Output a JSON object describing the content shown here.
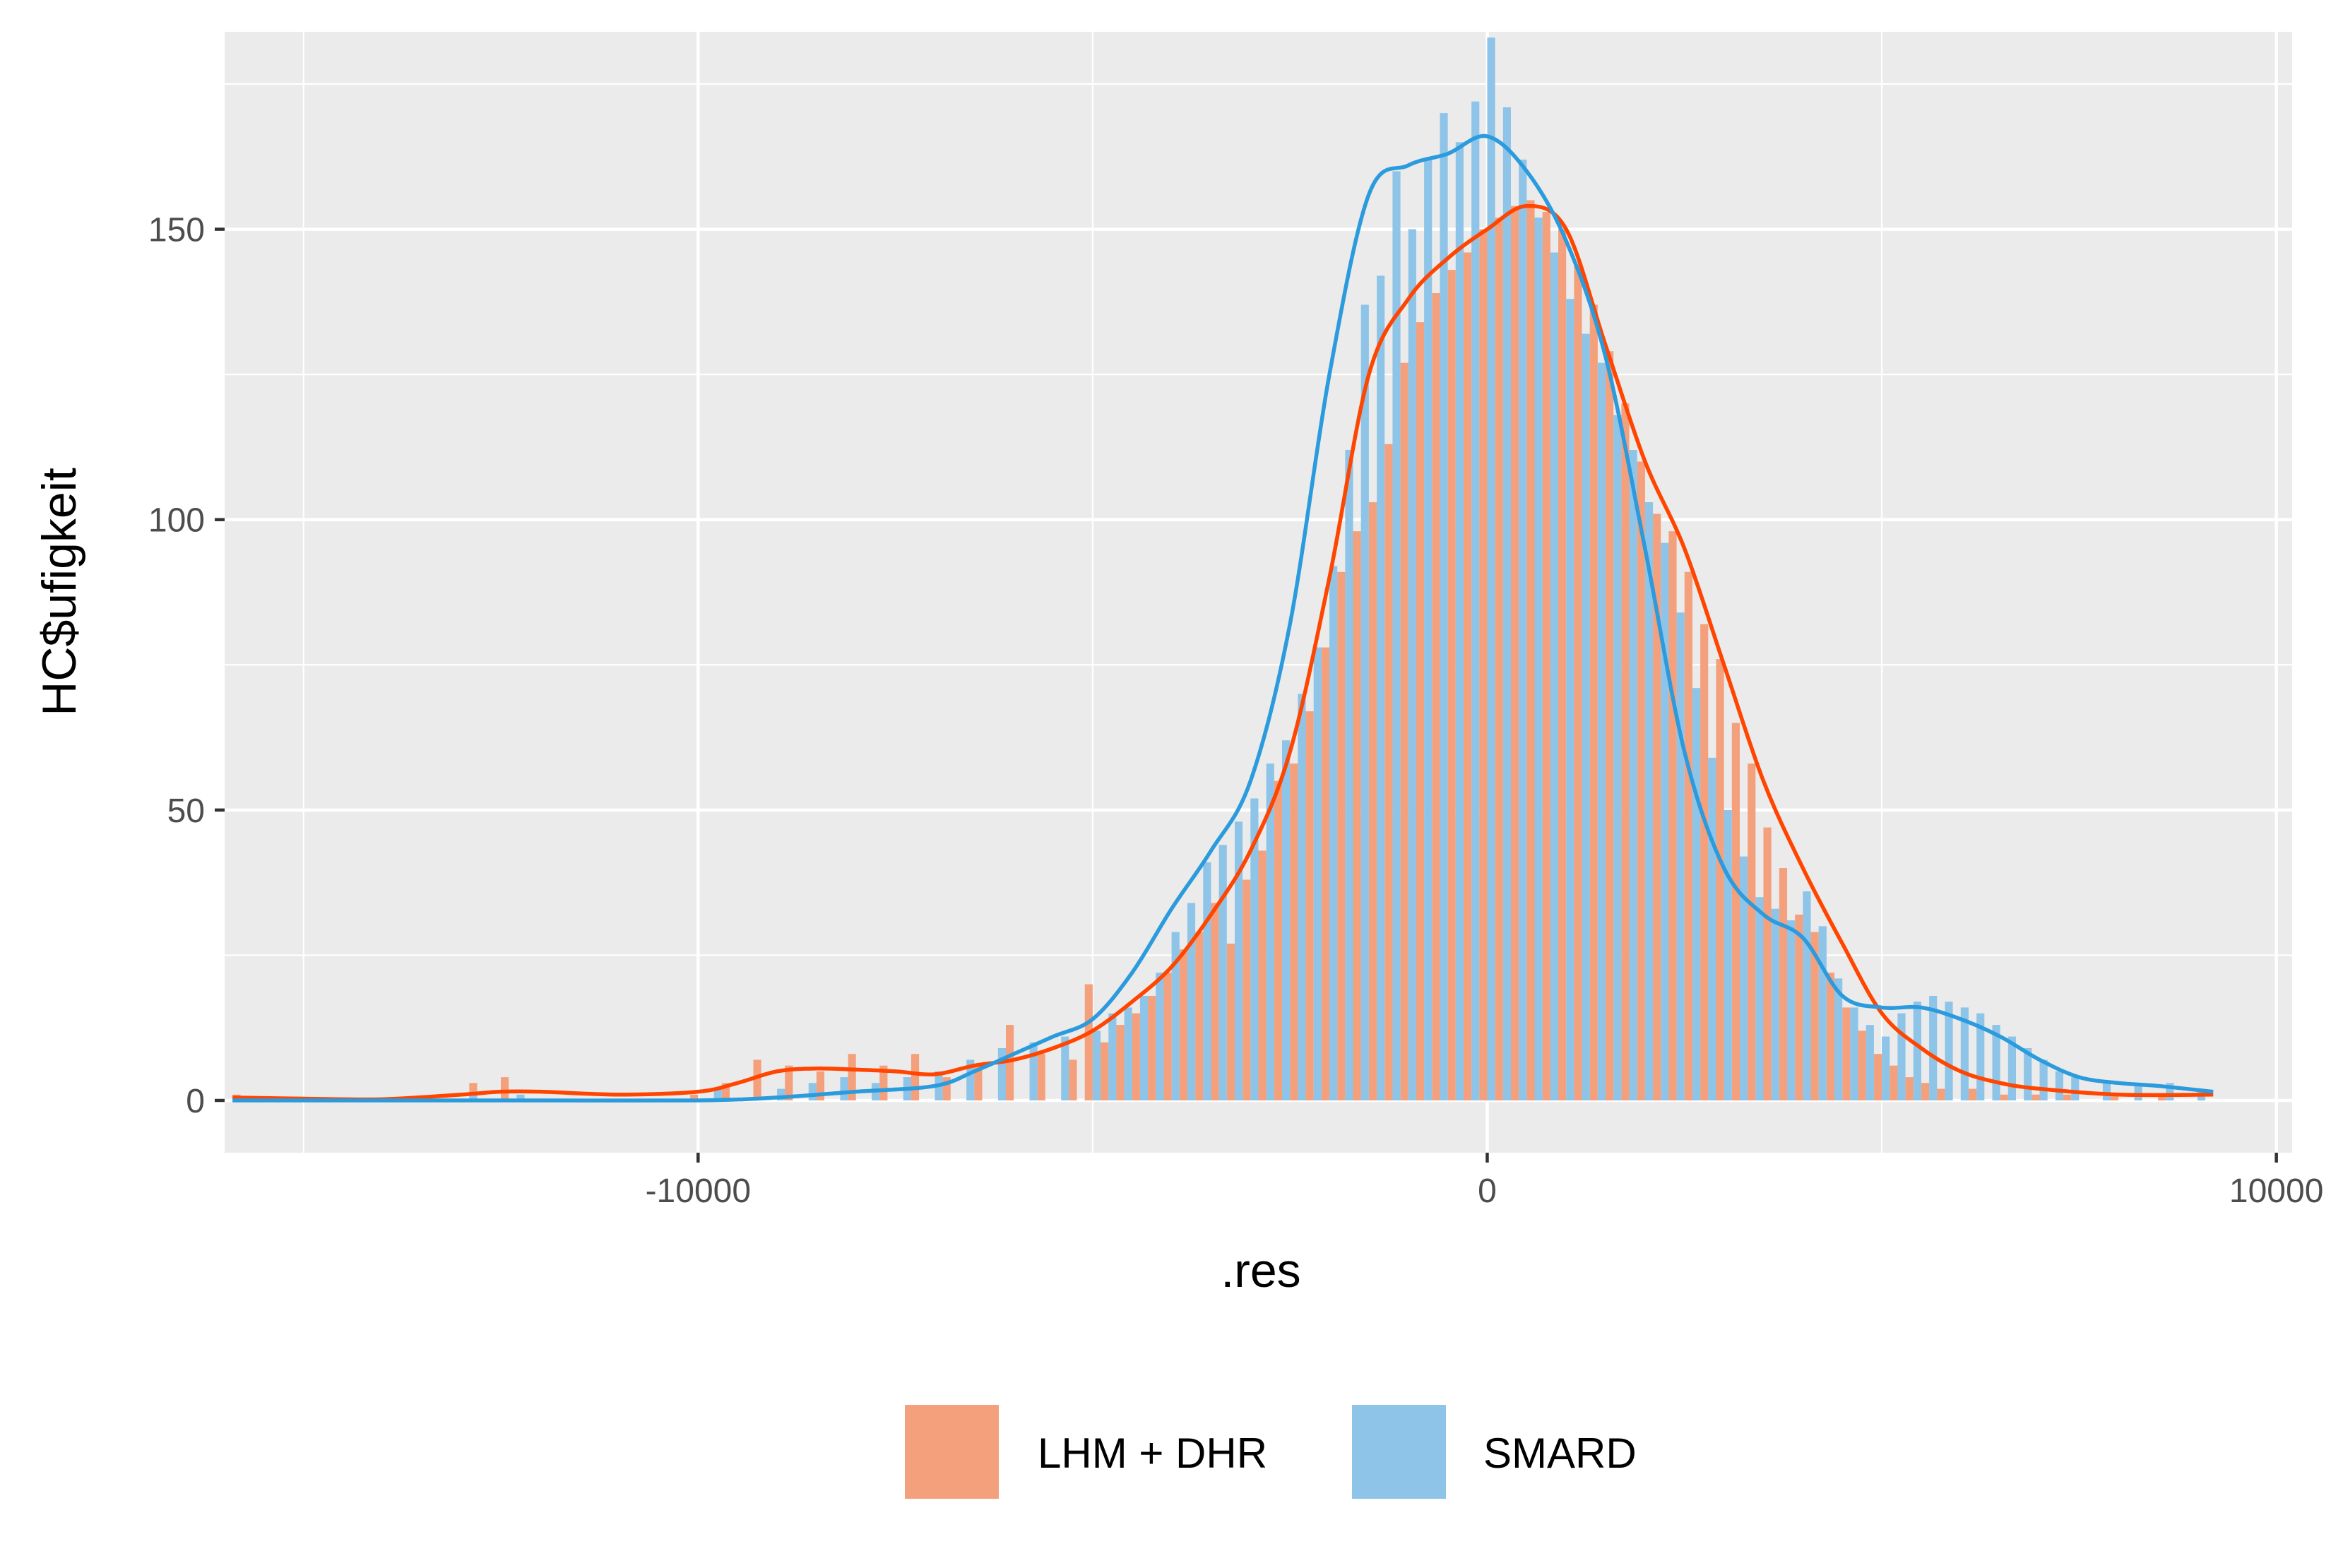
{
  "chart_data": {
    "type": "bar",
    "title": "",
    "xlabel": ".res",
    "ylabel": "HC$ufigkeit",
    "xlim": [
      -16000,
      10200
    ],
    "ylim": [
      -9,
      184
    ],
    "x_ticks": [
      -10000,
      0,
      10000
    ],
    "x_tick_labels": [
      "-10000",
      "0",
      "10000"
    ],
    "y_ticks": [
      0,
      50,
      100,
      150
    ],
    "y_tick_labels": [
      "0",
      "50",
      "100",
      "150"
    ],
    "grid": true,
    "legend_position": "bottom",
    "bin_width": 200,
    "series": [
      {
        "name": "LHM + DHR",
        "color": "#F4A07C",
        "line_color": "#FF4500",
        "bins": [
          [
            -15800,
            1
          ],
          [
            -12800,
            3
          ],
          [
            -12400,
            4
          ],
          [
            -10000,
            1
          ],
          [
            -9600,
            3
          ],
          [
            -9200,
            7
          ],
          [
            -8800,
            6
          ],
          [
            -8400,
            5
          ],
          [
            -8000,
            8
          ],
          [
            -7600,
            6
          ],
          [
            -7200,
            8
          ],
          [
            -6800,
            4
          ],
          [
            -6400,
            6
          ],
          [
            -6000,
            13
          ],
          [
            -5600,
            8
          ],
          [
            -5200,
            7
          ],
          [
            -5000,
            20
          ],
          [
            -4800,
            10
          ],
          [
            -4600,
            13
          ],
          [
            -4400,
            15
          ],
          [
            -4200,
            18
          ],
          [
            -4000,
            22
          ],
          [
            -3800,
            26
          ],
          [
            -3600,
            29
          ],
          [
            -3400,
            34
          ],
          [
            -3200,
            27
          ],
          [
            -3000,
            38
          ],
          [
            -2800,
            43
          ],
          [
            -2600,
            55
          ],
          [
            -2400,
            58
          ],
          [
            -2200,
            67
          ],
          [
            -2000,
            78
          ],
          [
            -1800,
            91
          ],
          [
            -1600,
            98
          ],
          [
            -1400,
            103
          ],
          [
            -1200,
            113
          ],
          [
            -1000,
            127
          ],
          [
            -800,
            134
          ],
          [
            -600,
            139
          ],
          [
            -400,
            143
          ],
          [
            -200,
            146
          ],
          [
            0,
            150
          ],
          [
            200,
            152
          ],
          [
            400,
            154
          ],
          [
            600,
            155
          ],
          [
            800,
            153
          ],
          [
            1000,
            150
          ],
          [
            1200,
            144
          ],
          [
            1400,
            137
          ],
          [
            1600,
            129
          ],
          [
            1800,
            120
          ],
          [
            2000,
            110
          ],
          [
            2200,
            101
          ],
          [
            2400,
            98
          ],
          [
            2600,
            91
          ],
          [
            2800,
            82
          ],
          [
            3000,
            76
          ],
          [
            3200,
            65
          ],
          [
            3400,
            58
          ],
          [
            3600,
            47
          ],
          [
            3800,
            40
          ],
          [
            4000,
            32
          ],
          [
            4200,
            29
          ],
          [
            4400,
            22
          ],
          [
            4600,
            16
          ],
          [
            4800,
            12
          ],
          [
            5000,
            8
          ],
          [
            5200,
            6
          ],
          [
            5400,
            4
          ],
          [
            5600,
            3
          ],
          [
            5800,
            2
          ],
          [
            6200,
            2
          ],
          [
            6600,
            1
          ],
          [
            7000,
            1
          ],
          [
            7400,
            1
          ],
          [
            8000,
            1
          ],
          [
            8600,
            1
          ]
        ],
        "density": [
          [
            -15900,
            0.5
          ],
          [
            -15000,
            0.3
          ],
          [
            -14000,
            0.2
          ],
          [
            -13000,
            1.0
          ],
          [
            -12500,
            1.5
          ],
          [
            -12000,
            1.5
          ],
          [
            -11000,
            1.0
          ],
          [
            -10000,
            1.5
          ],
          [
            -9500,
            3
          ],
          [
            -9000,
            5
          ],
          [
            -8500,
            5.5
          ],
          [
            -8000,
            5.3
          ],
          [
            -7500,
            5
          ],
          [
            -7000,
            4.5
          ],
          [
            -6500,
            6
          ],
          [
            -6000,
            7
          ],
          [
            -5500,
            9
          ],
          [
            -5000,
            12
          ],
          [
            -4500,
            17
          ],
          [
            -4000,
            23
          ],
          [
            -3500,
            32
          ],
          [
            -3000,
            43
          ],
          [
            -2500,
            60
          ],
          [
            -2000,
            90
          ],
          [
            -1500,
            125
          ],
          [
            -1000,
            138
          ],
          [
            -500,
            145
          ],
          [
            0,
            150
          ],
          [
            500,
            154
          ],
          [
            1000,
            150
          ],
          [
            1500,
            130
          ],
          [
            2000,
            110
          ],
          [
            2500,
            95
          ],
          [
            3000,
            75
          ],
          [
            3500,
            55
          ],
          [
            4000,
            40
          ],
          [
            4500,
            27
          ],
          [
            5000,
            15
          ],
          [
            5500,
            9
          ],
          [
            6000,
            5
          ],
          [
            6500,
            3
          ],
          [
            7000,
            2
          ],
          [
            8000,
            1
          ],
          [
            9200,
            1
          ]
        ]
      },
      {
        "name": "SMARD",
        "color": "#8EC4E8",
        "line_color": "#2B9BDD",
        "bins": [
          [
            -15400,
            0
          ],
          [
            -12900,
            1
          ],
          [
            -12300,
            1
          ],
          [
            -9800,
            2
          ],
          [
            -9000,
            2
          ],
          [
            -8600,
            3
          ],
          [
            -8200,
            4
          ],
          [
            -7800,
            3
          ],
          [
            -7400,
            4
          ],
          [
            -7000,
            5
          ],
          [
            -6600,
            7
          ],
          [
            -6200,
            9
          ],
          [
            -5800,
            10
          ],
          [
            -5400,
            11
          ],
          [
            -5000,
            12
          ],
          [
            -4800,
            15
          ],
          [
            -4600,
            16
          ],
          [
            -4400,
            18
          ],
          [
            -4200,
            22
          ],
          [
            -4000,
            29
          ],
          [
            -3800,
            34
          ],
          [
            -3600,
            41
          ],
          [
            -3400,
            44
          ],
          [
            -3200,
            48
          ],
          [
            -3000,
            52
          ],
          [
            -2800,
            58
          ],
          [
            -2600,
            62
          ],
          [
            -2400,
            70
          ],
          [
            -2200,
            78
          ],
          [
            -2000,
            92
          ],
          [
            -1800,
            112
          ],
          [
            -1600,
            137
          ],
          [
            -1400,
            142
          ],
          [
            -1200,
            160
          ],
          [
            -1000,
            150
          ],
          [
            -800,
            162
          ],
          [
            -600,
            170
          ],
          [
            -400,
            165
          ],
          [
            -200,
            172
          ],
          [
            0,
            183
          ],
          [
            200,
            171
          ],
          [
            400,
            162
          ],
          [
            600,
            152
          ],
          [
            800,
            146
          ],
          [
            1000,
            138
          ],
          [
            1200,
            132
          ],
          [
            1400,
            127
          ],
          [
            1600,
            118
          ],
          [
            1800,
            112
          ],
          [
            2000,
            103
          ],
          [
            2200,
            96
          ],
          [
            2400,
            84
          ],
          [
            2600,
            71
          ],
          [
            2800,
            59
          ],
          [
            3000,
            50
          ],
          [
            3200,
            42
          ],
          [
            3400,
            35
          ],
          [
            3600,
            33
          ],
          [
            3800,
            31
          ],
          [
            4000,
            36
          ],
          [
            4200,
            30
          ],
          [
            4400,
            21
          ],
          [
            4600,
            16
          ],
          [
            4800,
            13
          ],
          [
            5000,
            11
          ],
          [
            5200,
            15
          ],
          [
            5400,
            17
          ],
          [
            5600,
            18
          ],
          [
            5800,
            17
          ],
          [
            6000,
            16
          ],
          [
            6200,
            15
          ],
          [
            6400,
            13
          ],
          [
            6600,
            11
          ],
          [
            6800,
            9
          ],
          [
            7000,
            7
          ],
          [
            7200,
            5
          ],
          [
            7400,
            4
          ],
          [
            7800,
            3
          ],
          [
            8200,
            3
          ],
          [
            8600,
            3
          ],
          [
            9000,
            2
          ]
        ],
        "density": [
          [
            -15900,
            0
          ],
          [
            -14000,
            0
          ],
          [
            -12000,
            0
          ],
          [
            -10000,
            0
          ],
          [
            -9000,
            0.5
          ],
          [
            -8000,
            1.5
          ],
          [
            -7000,
            2.5
          ],
          [
            -6500,
            5
          ],
          [
            -6000,
            8
          ],
          [
            -5500,
            11
          ],
          [
            -5000,
            14
          ],
          [
            -4500,
            22
          ],
          [
            -4000,
            33
          ],
          [
            -3500,
            43
          ],
          [
            -3000,
            55
          ],
          [
            -2500,
            82
          ],
          [
            -2000,
            125
          ],
          [
            -1500,
            156
          ],
          [
            -1000,
            161
          ],
          [
            -500,
            163
          ],
          [
            0,
            166
          ],
          [
            500,
            160
          ],
          [
            1000,
            148
          ],
          [
            1500,
            128
          ],
          [
            2000,
            95
          ],
          [
            2500,
            60
          ],
          [
            3000,
            40
          ],
          [
            3500,
            32
          ],
          [
            4000,
            28
          ],
          [
            4500,
            18
          ],
          [
            5000,
            16
          ],
          [
            5500,
            16
          ],
          [
            6000,
            14
          ],
          [
            6500,
            11
          ],
          [
            7000,
            7
          ],
          [
            7500,
            4
          ],
          [
            8000,
            3
          ],
          [
            8500,
            2.5
          ],
          [
            9200,
            1.5
          ]
        ]
      }
    ]
  }
}
